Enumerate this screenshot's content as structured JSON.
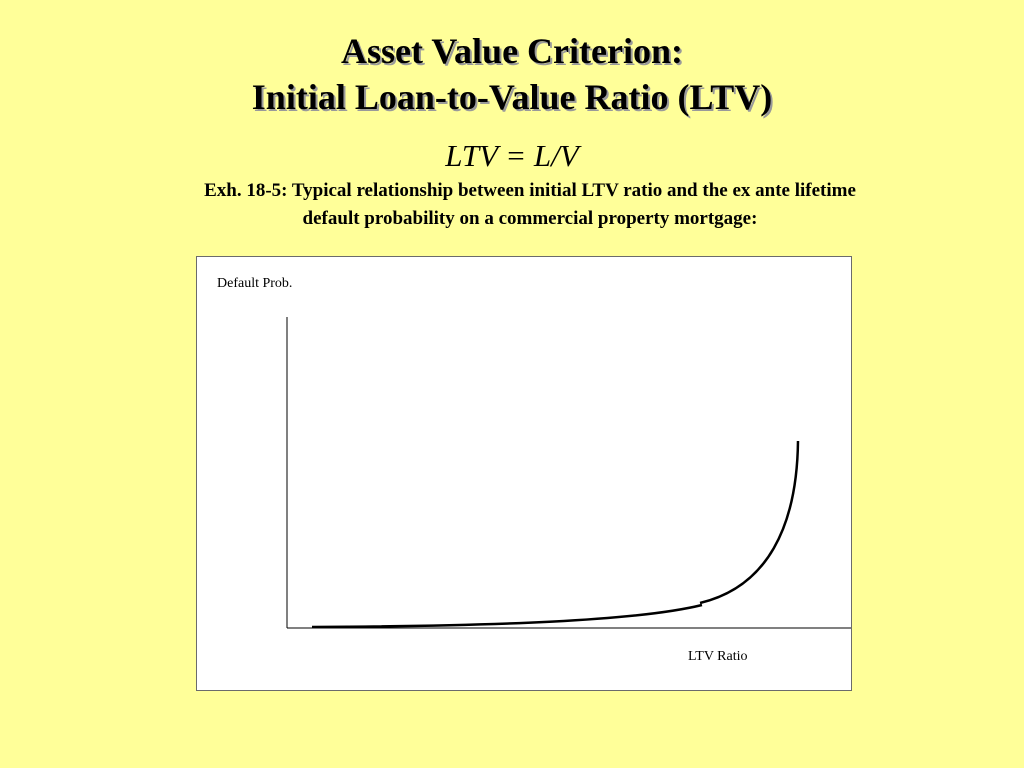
{
  "slide": {
    "background": "#ffff99",
    "title_line1": "Asset Value Criterion:",
    "title_line2": "Initial Loan-to-Value Ratio (LTV)",
    "formula": "LTV = L/V",
    "caption_line1": "Exh. 18-5: Typical relationship between initial LTV ratio and the ex ante lifetime",
    "caption_line2": "default probability on a commercial property mortgage:"
  },
  "diagram": {
    "ylabel": "Default Prob.",
    "xlabel": "LTV Ratio",
    "curve": "flat near zero, rising gradually, then sharply convex at high LTV ratios"
  }
}
